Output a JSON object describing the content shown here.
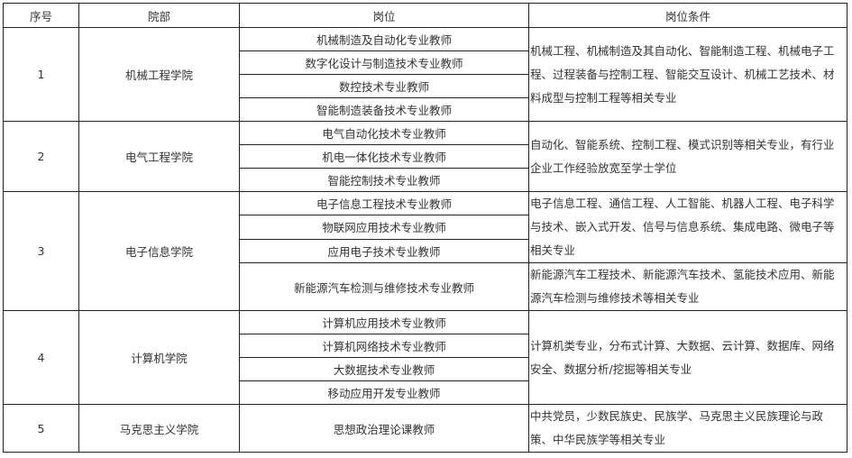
{
  "headers": [
    "序号",
    "院部",
    "岗位",
    "岗位条件"
  ],
  "rows": [
    {
      "no": "1",
      "dept": "机械工程学院",
      "positions": [
        "机械制造及自动化专业教师",
        "数字化设计与制造技术专业教师",
        "数控技术专业教师",
        "智能制造装备技术专业教师"
      ],
      "conditions": [
        "机械工程、机械制造及其自动化、智能制造工程、机械电子工程、过程装备与控制工程、智能交互设计、机械工艺技术、材料成型与控制工程等相关专业"
      ]
    },
    {
      "no": "2",
      "dept": "电气工程学院",
      "positions": [
        "电气自动化技术专业教师",
        "机电一体化技术专业教师",
        "智能控制技术专业教师"
      ],
      "conditions": [
        "自动化、智能系统、控制工程、模式识别等相关专业，有行业企业工作经验放宽至学士学位"
      ]
    },
    {
      "no": "3",
      "dept": "电子信息学院",
      "positions": [
        "电子信息工程技术专业教师",
        "物联网应用技术专业教师",
        "应用电子技术专业教师",
        "新能源汽车检测与维修技术专业教师"
      ],
      "conditions": [
        "电子信息工程、通信工程、人工智能、机器人工程、电子科学与技术、嵌入式开发、信号与信息系统、集成电路、微电子等相关专业",
        "新能源汽车工程技术、新能源汽车技术、氢能技术应用、新能源汽车检测与维修技术等相关专业"
      ]
    },
    {
      "no": "4",
      "dept": "计算机学院",
      "positions": [
        "计算机应用技术专业教师",
        "计算机网络技术专业教师",
        "大数据技术专业教师",
        "移动应用开发专业教师"
      ],
      "conditions": [
        "计算机类专业，分布式计算、大数据、云计算、数据库、网络安全、数据分析/挖掘等相关专业"
      ]
    },
    {
      "no": "5",
      "dept": "马克思主义学院",
      "positions": [
        "思想政治理论课教师"
      ],
      "conditions": [
        "中共党员，少数民族史、民族学、马克思主义民族理论与政策、中华民族学等相关专业"
      ]
    }
  ]
}
